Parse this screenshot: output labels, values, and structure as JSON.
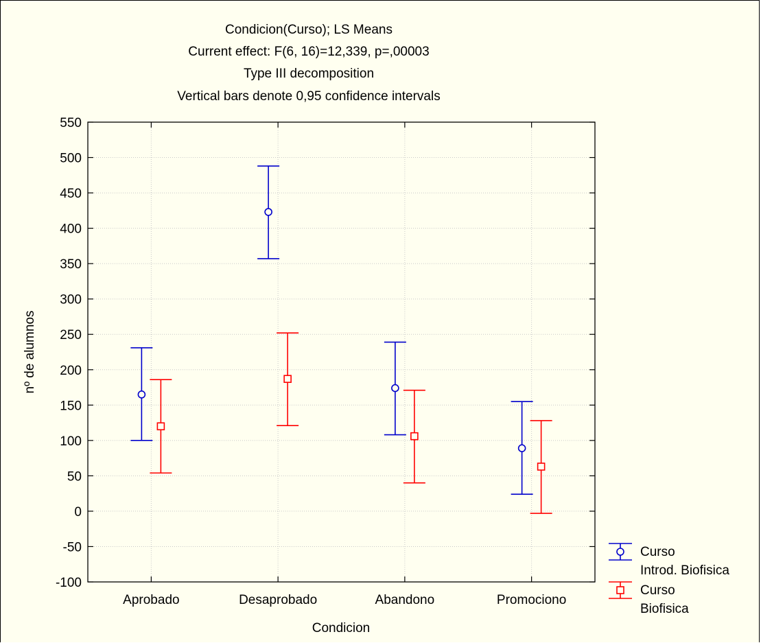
{
  "chart_data": {
    "type": "scatter",
    "title": [
      "Condicion(Curso); LS Means",
      "Current effect: F(6, 16)=12,339, p=,00003",
      "Type III decomposition",
      "Vertical bars denote 0,95 confidence intervals"
    ],
    "xlabel": "Condicion",
    "ylabel": "nº de alumnos",
    "categories": [
      "Aprobado",
      "Desaprobado",
      "Abandono",
      "Promociono"
    ],
    "ylim": [
      -100,
      550
    ],
    "yticks": [
      -100,
      -50,
      0,
      50,
      100,
      150,
      200,
      250,
      300,
      350,
      400,
      450,
      500,
      550
    ],
    "grid": true,
    "legend_position": "bottom-right",
    "series": [
      {
        "name": "Curso Introd. Biofisica",
        "legend_lines": [
          "Curso",
          "Introd. Biofisica"
        ],
        "color": "#0000cc",
        "marker": "circle",
        "categories": [
          "Aprobado",
          "Desaprobado",
          "Abandono",
          "Promociono"
        ],
        "means": [
          165,
          423,
          174,
          89
        ],
        "lower": [
          100,
          357,
          108,
          24
        ],
        "upper": [
          231,
          488,
          239,
          155
        ]
      },
      {
        "name": "Curso Biofisica",
        "legend_lines": [
          "Curso",
          "Biofisica"
        ],
        "color": "#ff0000",
        "marker": "square",
        "categories": [
          "Aprobado",
          "Desaprobado",
          "Abandono",
          "Promociono"
        ],
        "means": [
          120,
          187,
          106,
          63
        ],
        "lower": [
          54,
          121,
          40,
          -3
        ],
        "upper": [
          186,
          252,
          171,
          128
        ]
      }
    ]
  }
}
